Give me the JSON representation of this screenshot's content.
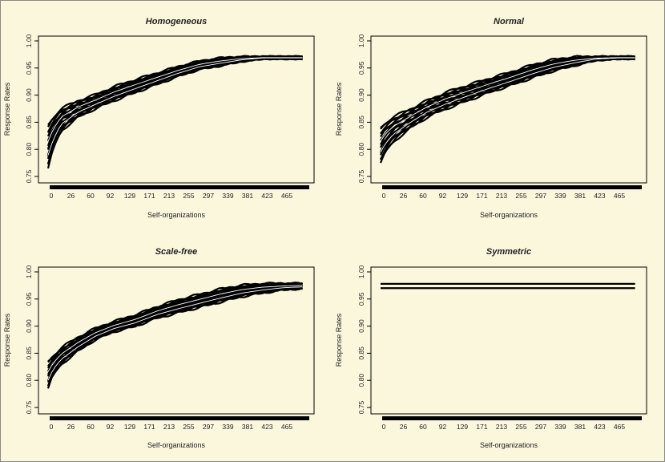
{
  "chart_data": [
    {
      "type": "line",
      "title": "Homogeneous",
      "xlabel": "Self-organizations",
      "ylabel": "Response Rates",
      "x_ticks": [
        "0",
        "26",
        "60",
        "92",
        "129",
        "171",
        "213",
        "255",
        "297",
        "339",
        "381",
        "423",
        "465"
      ],
      "y_ticks": [
        "0.75",
        "0.80",
        "0.85",
        "0.90",
        "0.95",
        "1.00"
      ],
      "xlim": [
        0,
        510
      ],
      "ylim": [
        0.75,
        1.0
      ],
      "grid": false,
      "band": {
        "x": [
          0,
          10,
          26,
          60,
          92,
          129,
          171,
          213,
          255,
          297,
          339,
          381,
          423,
          465,
          500
        ],
        "lower": [
          0.765,
          0.8,
          0.835,
          0.86,
          0.875,
          0.89,
          0.905,
          0.92,
          0.935,
          0.948,
          0.955,
          0.963,
          0.968,
          0.968,
          0.968
        ],
        "upper": [
          0.845,
          0.86,
          0.875,
          0.89,
          0.9,
          0.915,
          0.928,
          0.94,
          0.952,
          0.962,
          0.968,
          0.97,
          0.97,
          0.97,
          0.97
        ]
      }
    },
    {
      "type": "line",
      "title": "Normal",
      "xlabel": "Self-organizations",
      "ylabel": "Response Rates",
      "x_ticks": [
        "0",
        "26",
        "60",
        "92",
        "129",
        "171",
        "213",
        "255",
        "297",
        "339",
        "381",
        "423",
        "465"
      ],
      "y_ticks": [
        "0.75",
        "0.80",
        "0.85",
        "0.90",
        "0.95",
        "1.00"
      ],
      "xlim": [
        0,
        510
      ],
      "ylim": [
        0.75,
        1.0
      ],
      "grid": false,
      "band": {
        "x": [
          0,
          10,
          26,
          60,
          92,
          129,
          171,
          213,
          255,
          297,
          339,
          381,
          423,
          465,
          500
        ],
        "lower": [
          0.775,
          0.795,
          0.815,
          0.84,
          0.86,
          0.875,
          0.89,
          0.905,
          0.918,
          0.932,
          0.945,
          0.955,
          0.965,
          0.968,
          0.968
        ],
        "upper": [
          0.84,
          0.85,
          0.86,
          0.875,
          0.89,
          0.905,
          0.918,
          0.93,
          0.942,
          0.955,
          0.965,
          0.97,
          0.97,
          0.97,
          0.97
        ]
      }
    },
    {
      "type": "line",
      "title": "Scale-free",
      "xlabel": "Self-organizations",
      "ylabel": "Response Rates",
      "x_ticks": [
        "0",
        "26",
        "60",
        "92",
        "129",
        "171",
        "213",
        "255",
        "297",
        "339",
        "381",
        "423",
        "465"
      ],
      "y_ticks": [
        "0.75",
        "0.80",
        "0.85",
        "0.90",
        "0.95",
        "1.00"
      ],
      "xlim": [
        0,
        510
      ],
      "ylim": [
        0.75,
        1.0
      ],
      "grid": false,
      "band": {
        "x": [
          0,
          10,
          26,
          60,
          92,
          129,
          171,
          213,
          255,
          297,
          339,
          381,
          423,
          465,
          500
        ],
        "lower": [
          0.785,
          0.81,
          0.83,
          0.855,
          0.875,
          0.89,
          0.9,
          0.915,
          0.925,
          0.935,
          0.945,
          0.955,
          0.962,
          0.968,
          0.97
        ],
        "upper": [
          0.835,
          0.845,
          0.86,
          0.88,
          0.895,
          0.908,
          0.92,
          0.935,
          0.948,
          0.958,
          0.968,
          0.975,
          0.978,
          0.978,
          0.978
        ]
      }
    },
    {
      "type": "line",
      "title": "Symmetric",
      "xlabel": "Self-organizations",
      "ylabel": "Response Rates",
      "x_ticks": [
        "0",
        "26",
        "60",
        "92",
        "129",
        "171",
        "213",
        "255",
        "297",
        "339",
        "381",
        "423",
        "465"
      ],
      "y_ticks": [
        "0.75",
        "0.80",
        "0.85",
        "0.90",
        "0.95",
        "1.00"
      ],
      "xlim": [
        0,
        510
      ],
      "ylim": [
        0.75,
        1.0
      ],
      "grid": false,
      "series": [
        {
          "x": [
            0,
            500
          ],
          "values": [
            0.978,
            0.978
          ]
        },
        {
          "x": [
            0,
            500
          ],
          "values": [
            0.97,
            0.97
          ]
        }
      ]
    }
  ],
  "colors": {
    "background": "#fbf7dd",
    "ink": "#000000"
  }
}
